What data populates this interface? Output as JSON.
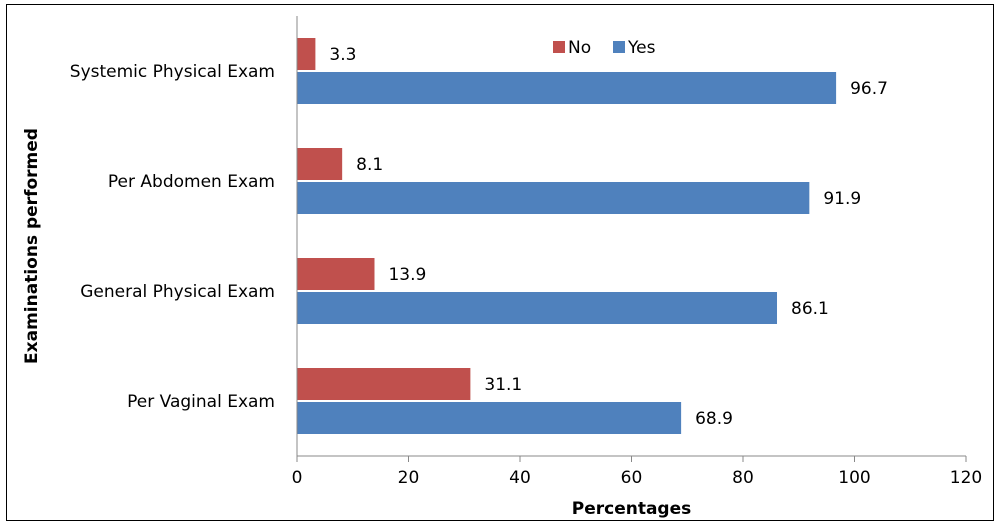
{
  "chart_data": {
    "type": "bar",
    "orientation": "horizontal",
    "categories": [
      "Systemic Physical Exam",
      "Per Abdomen Exam",
      "General Physical Exam",
      "Per Vaginal Exam"
    ],
    "series": [
      {
        "name": "No",
        "values": [
          3.3,
          8.1,
          13.9,
          31.1
        ],
        "color": "#c0504d"
      },
      {
        "name": "Yes",
        "values": [
          96.7,
          91.9,
          86.1,
          68.9
        ],
        "color": "#4f81bd"
      }
    ],
    "value_labels": {
      "No": [
        "3.3",
        "8.1",
        "13.9",
        "31.1"
      ],
      "Yes": [
        "96.7",
        "91.9",
        "86.1",
        "68.9"
      ]
    },
    "xlabel": "Percentages",
    "ylabel": "Examinations performed",
    "xlim": [
      0,
      120
    ],
    "x_ticks": [
      "0",
      "20",
      "40",
      "60",
      "80",
      "100",
      "120"
    ],
    "grid": false,
    "legend_position": "top-center"
  }
}
